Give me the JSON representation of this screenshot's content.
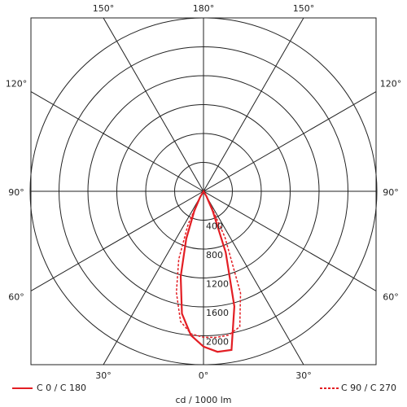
{
  "chart_data": {
    "type": "polar",
    "unit": "cd / 1000 lm",
    "rlim": [
      0,
      2400
    ],
    "rticks": [
      400,
      800,
      1200,
      1600,
      2000
    ],
    "angle_ticks": [
      {
        "value": -150,
        "label": "150°"
      },
      {
        "value": 180,
        "label": "180°"
      },
      {
        "value": 150,
        "label": "150°"
      },
      {
        "value": -120,
        "label": "120°"
      },
      {
        "value": 120,
        "label": "120°"
      },
      {
        "value": -90,
        "label": "90°"
      },
      {
        "value": 90,
        "label": "90°"
      },
      {
        "value": -60,
        "label": "60°"
      },
      {
        "value": 60,
        "label": "60°"
      },
      {
        "value": -30,
        "label": "30°"
      },
      {
        "value": 0,
        "label": "0°"
      },
      {
        "value": 30,
        "label": "30°"
      }
    ],
    "angles": [
      -30,
      -25,
      -20,
      -15,
      -10,
      -5,
      0,
      5,
      10,
      15,
      20,
      25,
      30
    ],
    "series": [
      {
        "name": "C 0 / C 180",
        "color": "#e31e24",
        "dashed": false,
        "values": [
          100,
          300,
          700,
          1220,
          1720,
          2000,
          2150,
          2230,
          2230,
          1650,
          900,
          300,
          80
        ]
      },
      {
        "name": "C 90 / C 270",
        "color": "#e31e24",
        "dashed": true,
        "values": [
          100,
          500,
          1000,
          1450,
          1830,
          1980,
          2020,
          2030,
          2020,
          1940,
          1500,
          700,
          120
        ]
      }
    ]
  }
}
